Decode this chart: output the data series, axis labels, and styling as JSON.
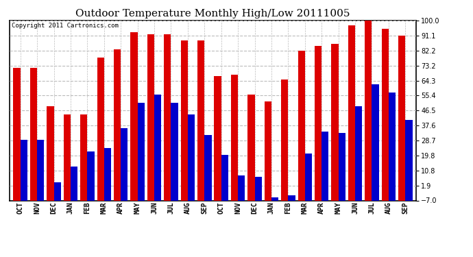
{
  "title": "Outdoor Temperature Monthly High/Low 20111005",
  "copyright": "Copyright 2011 Cartronics.com",
  "months": [
    "OCT",
    "NOV",
    "DEC",
    "JAN",
    "FEB",
    "MAR",
    "APR",
    "MAY",
    "JUN",
    "JUL",
    "AUG",
    "SEP",
    "OCT",
    "NOV",
    "DEC",
    "JAN",
    "FEB",
    "MAR",
    "APR",
    "MAY",
    "JUN",
    "JUL",
    "AUG",
    "SEP"
  ],
  "highs": [
    72,
    72,
    49,
    44,
    44,
    78,
    83,
    93,
    92,
    92,
    88,
    88,
    67,
    68,
    56,
    52,
    65,
    82,
    85,
    86,
    97,
    100,
    95,
    91
  ],
  "lows": [
    29,
    29,
    4,
    13,
    22,
    24,
    36,
    51,
    56,
    51,
    44,
    32,
    20,
    8,
    7,
    -5,
    -4,
    21,
    34,
    33,
    49,
    62,
    57,
    41
  ],
  "yticks": [
    100.0,
    91.1,
    82.2,
    73.2,
    64.3,
    55.4,
    46.5,
    37.6,
    28.7,
    19.8,
    10.8,
    1.9,
    -7.0
  ],
  "ymin": -7.0,
  "ymax": 100.0,
  "bar_color_high": "#dd0000",
  "bar_color_low": "#0000cc",
  "background_color": "#ffffff",
  "plot_bg_color": "#ffffff",
  "grid_color": "#bbbbbb",
  "title_fontsize": 11,
  "tick_fontsize": 7,
  "bar_width": 0.42
}
